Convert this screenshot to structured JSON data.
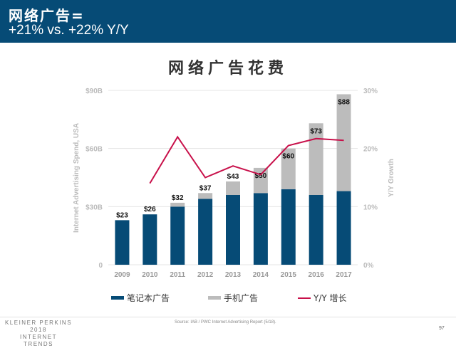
{
  "header": {
    "line1": "网络广告=",
    "line2": "+21% vs. +22% Y/Y",
    "bg_color": "#064b76"
  },
  "chart_title": "网络广告花费",
  "legend": [
    {
      "label": "笔记本广告",
      "color": "#064b76",
      "type": "bar"
    },
    {
      "label": "手机广告",
      "color": "#bcbcbc",
      "type": "bar"
    },
    {
      "label": "Y/Y 增长",
      "color": "#c8104a",
      "type": "line"
    }
  ],
  "footer": {
    "brand_line1": "KLEINER PERKINS",
    "brand_line2": "2018",
    "brand_line3": "INTERNET TRENDS",
    "source": "Source: IAB / PWC Internet Advertising Report (5/18).",
    "page_number": "97"
  },
  "chart_data": {
    "type": "bar",
    "title": "网络广告花费",
    "xlabel": "",
    "ylabel": "Internet Advertising Spend, USA",
    "y2label": "Y/Y Growth",
    "categories": [
      "2009",
      "2010",
      "2011",
      "2012",
      "2013",
      "2014",
      "2015",
      "2016",
      "2017"
    ],
    "ylim": [
      0,
      90
    ],
    "y_ticks": [
      "0",
      "$30B",
      "$60B",
      "$90B"
    ],
    "y2lim": [
      0,
      30
    ],
    "y2_ticks": [
      "0%",
      "10%",
      "20%",
      "30%"
    ],
    "stacked": true,
    "series": [
      {
        "name": "笔记本广告",
        "type": "bar",
        "color": "#064b76",
        "values": [
          23,
          26,
          30,
          34,
          36,
          37,
          39,
          36,
          38
        ]
      },
      {
        "name": "手机广告",
        "type": "bar",
        "color": "#bcbcbc",
        "values": [
          0,
          0,
          2,
          3,
          7,
          13,
          21,
          37,
          50
        ]
      },
      {
        "name": "Y/Y 增长",
        "type": "line",
        "axis": "y2",
        "color": "#c8104a",
        "values": [
          null,
          14,
          22,
          15,
          17,
          15.5,
          20.5,
          21.7,
          21.4
        ]
      }
    ],
    "totals_labels": [
      "$23",
      "$26",
      "$32",
      "$37",
      "$43",
      "$50",
      "$60",
      "$73",
      "$88"
    ],
    "grid": true,
    "legend_position": "bottom"
  }
}
